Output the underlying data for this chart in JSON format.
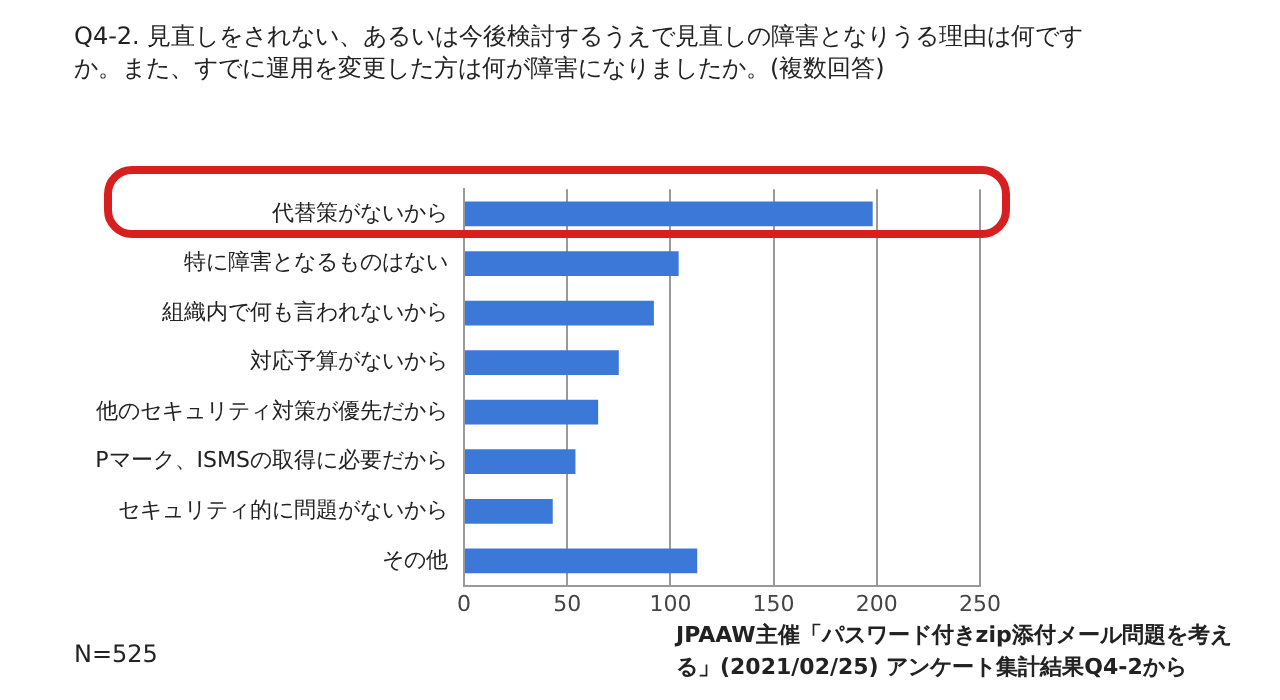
{
  "chart_data": {
    "type": "bar",
    "orientation": "horizontal",
    "title": "Q4-2. 見直しをされない、あるいは今後検討するうえで見直しの障害となりうる理由は何ですか。また、すでに運用を変更した方は何が障害になりましたか。(複数回答)",
    "categories": [
      "代替策がないから",
      "特に障害となるものはない",
      "組織内で何も言われないから",
      "対応予算がないから",
      "他のセキュリティ対策が優先だから",
      "Pマーク、ISMSの取得に必要だから",
      "セキュリティ的に問題がないから",
      "その他"
    ],
    "values": [
      198,
      104,
      92,
      75,
      65,
      54,
      43,
      113
    ],
    "color": "#3c78d8",
    "xlim": [
      0,
      250
    ],
    "xticks": [
      0,
      50,
      100,
      150,
      200,
      250
    ],
    "grid": "x",
    "legend": false,
    "annotations": [
      "N=525",
      "JPAAW主催「パスワード付きzip添付メール問題を考える」(2021/02/25) アンケート集計結果Q4-2から"
    ]
  }
}
